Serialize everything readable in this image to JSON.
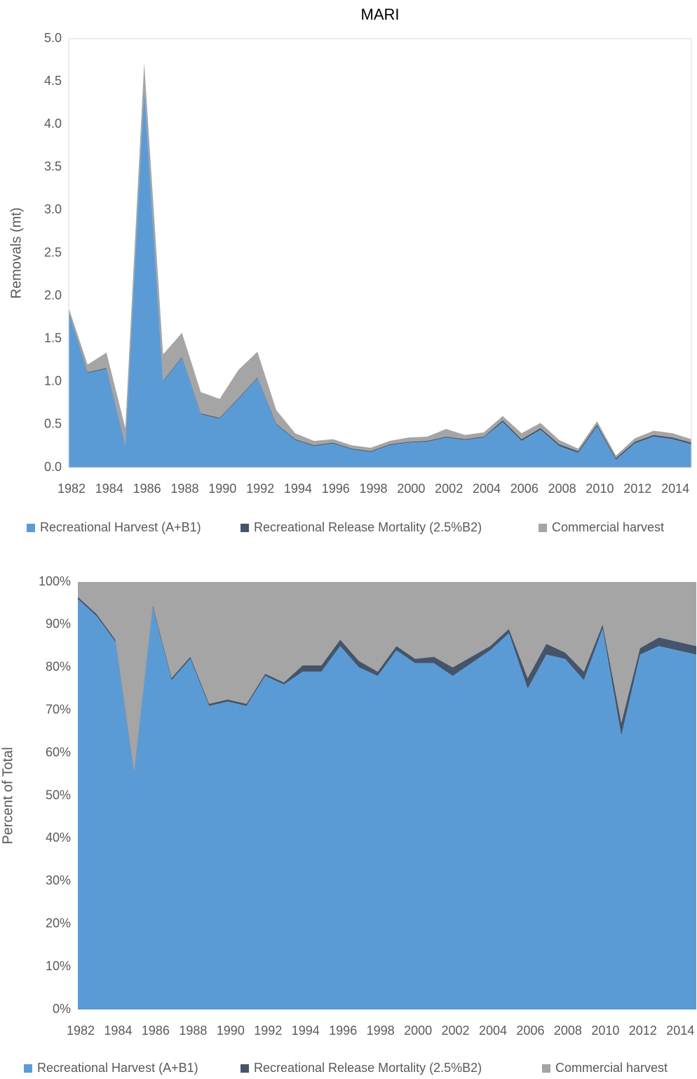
{
  "chart_data": [
    {
      "type": "stacked_area",
      "title": "MARI",
      "y_label": "Removals (mt)",
      "categories": [
        "1982",
        null,
        "1984",
        null,
        "1986",
        null,
        "1988",
        null,
        "1990",
        null,
        "1992",
        null,
        "1994",
        null,
        "1996",
        null,
        "1998",
        null,
        "2000",
        null,
        "2002",
        null,
        "2004",
        null,
        "2006",
        null,
        "2008",
        null,
        "2010",
        null,
        "2012",
        null,
        "2014",
        null
      ],
      "series": [
        {
          "name": "Recreational Harvest (A+B1)",
          "color": "#5b9bd5",
          "values": [
            1.8,
            1.1,
            1.15,
            0.25,
            4.4,
            1.0,
            1.28,
            0.62,
            0.57,
            0.8,
            1.04,
            0.5,
            0.32,
            0.25,
            0.28,
            0.21,
            0.18,
            0.26,
            0.29,
            0.3,
            0.35,
            0.32,
            0.35,
            0.53,
            0.31,
            0.44,
            0.25,
            0.17,
            0.48,
            0.09,
            0.28,
            0.36,
            0.33,
            0.27
          ]
        },
        {
          "name": "Recreational Release Mortality (2.5%B2)",
          "color": "#44546a",
          "values": [
            0.01,
            0.01,
            0.01,
            0.01,
            0.01,
            0.01,
            0.01,
            0.01,
            0.01,
            0.01,
            0.01,
            0.01,
            0.01,
            0.01,
            0.01,
            0.01,
            0.01,
            0.01,
            0.01,
            0.01,
            0.01,
            0.01,
            0.01,
            0.02,
            0.02,
            0.02,
            0.02,
            0.02,
            0.02,
            0.02,
            0.02,
            0.02,
            0.02,
            0.02
          ]
        },
        {
          "name": "Commercial harvest",
          "color": "#a5a5a5",
          "values": [
            0.05,
            0.09,
            0.18,
            0.2,
            0.31,
            0.31,
            0.28,
            0.25,
            0.22,
            0.33,
            0.3,
            0.16,
            0.07,
            0.05,
            0.04,
            0.04,
            0.04,
            0.04,
            0.05,
            0.05,
            0.09,
            0.05,
            0.05,
            0.05,
            0.07,
            0.06,
            0.05,
            0.03,
            0.04,
            0.03,
            0.04,
            0.05,
            0.05,
            0.04
          ]
        }
      ],
      "ylim": [
        0,
        5
      ],
      "yticks": [
        {
          "value": 0,
          "label": "0.0"
        },
        0.5,
        {
          "value": 1,
          "label": "1.0"
        },
        1.5,
        {
          "value": 2,
          "label": "2.0"
        },
        2.5,
        {
          "value": 3,
          "label": "3.0"
        },
        3.5,
        {
          "value": 4,
          "label": "4.0"
        },
        4.5,
        {
          "value": 5,
          "label": "5.0"
        }
      ],
      "legend": "bottom"
    },
    {
      "type": "stacked_area",
      "y_label": "Percent of Total",
      "categories": [
        "1982",
        null,
        "1984",
        null,
        "1986",
        null,
        "1988",
        null,
        "1990",
        null,
        "1992",
        null,
        "1994",
        null,
        "1996",
        null,
        "1998",
        null,
        "2000",
        null,
        "2002",
        null,
        "2004",
        null,
        "2006",
        null,
        "2008",
        null,
        "2010",
        null,
        "2012",
        null,
        "2014",
        null
      ],
      "series": [
        {
          "name": "Recreational Harvest (A+B1)",
          "color": "#5b9bd5",
          "values": [
            96,
            92,
            86,
            55,
            94,
            77,
            82,
            71,
            72,
            71,
            78,
            76,
            79,
            79,
            85,
            80,
            78,
            84,
            81,
            81,
            78,
            81,
            84,
            88,
            75,
            83,
            82,
            77,
            89,
            64,
            83,
            85,
            84,
            83
          ]
        },
        {
          "name": "Recreational Release Mortality (2.5%B2)",
          "color": "#44546a",
          "values": [
            0.5,
            0.5,
            0.5,
            0.5,
            0.5,
            0.5,
            0.5,
            0.5,
            0.5,
            0.5,
            0.5,
            0.5,
            1.5,
            1.5,
            1.5,
            1.5,
            1,
            1,
            1,
            1.5,
            2,
            1.5,
            1,
            1,
            2.5,
            2.5,
            1.5,
            2,
            1,
            3,
            1.5,
            2,
            2,
            2
          ]
        },
        {
          "name": "Commercial harvest",
          "color": "#a5a5a5",
          "values": [
            3.5,
            7.5,
            13.5,
            44.5,
            5.5,
            22.5,
            17.5,
            28.5,
            27.5,
            28.5,
            21.5,
            23.5,
            19.5,
            19.5,
            13.5,
            18.5,
            21,
            15,
            18,
            17.5,
            20,
            17.5,
            15,
            11,
            22.5,
            14.5,
            16.5,
            21,
            10,
            33,
            15.5,
            13,
            14,
            15
          ]
        }
      ],
      "ylim": [
        0,
        100
      ],
      "yticks": [
        {
          "value": 0,
          "label": "0%"
        },
        {
          "value": 10,
          "label": "10%"
        },
        {
          "value": 20,
          "label": "20%"
        },
        {
          "value": 30,
          "label": "30%"
        },
        {
          "value": 40,
          "label": "40%"
        },
        {
          "value": 50,
          "label": "50%"
        },
        {
          "value": 60,
          "label": "60%"
        },
        {
          "value": 70,
          "label": "70%"
        },
        {
          "value": 80,
          "label": "80%"
        },
        {
          "value": 90,
          "label": "90%"
        },
        {
          "value": 100,
          "label": "100%"
        }
      ],
      "legend": "bottom"
    }
  ]
}
